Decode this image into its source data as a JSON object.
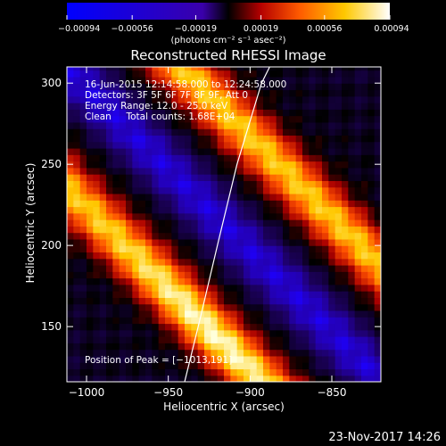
{
  "chart_data": {
    "type": "heatmap",
    "title": "Reconstructed RHESSI Image",
    "xlabel": "Heliocentric X (arcsec)",
    "ylabel": "Heliocentric Y (arcsec)",
    "xlim": [
      -1012,
      -820
    ],
    "ylim": [
      116,
      310
    ],
    "x_ticks": [
      -1000,
      -950,
      -900,
      -850
    ],
    "x_tick_labels": [
      "−1000",
      "−950",
      "−900",
      "−850"
    ],
    "y_ticks": [
      150,
      200,
      250,
      300
    ],
    "y_tick_labels": [
      "150",
      "200",
      "250",
      "300"
    ],
    "colorbar": {
      "range": [
        -0.00094,
        0.00094
      ],
      "ticks": [
        -0.00094,
        -0.00056,
        -0.00019,
        0.00019,
        0.00056,
        0.00094
      ],
      "tick_labels": [
        "−0.00094",
        "−0.00056",
        "−0.00019",
        "0.00019",
        "0.00056",
        "0.00094"
      ],
      "unit": "(photons cm⁻² s⁻¹ asec⁻²)",
      "colormap": [
        "#0000ff",
        "#000000",
        "#b40000",
        "#ff7800",
        "#ffff80",
        "#ffffff"
      ]
    },
    "info_lines": [
      "16-Jun-2015 12:14:58.000 to 12:24:58.000",
      "Detectors: 3F 5F 6F 7F 8F 9F, Att 0",
      "Energy Range: 12.0 - 25.0 keV",
      "Clean     Total counts: 1.68E+04"
    ],
    "peak_label": "Position of Peak = [−1013,191]",
    "peak_position": [
      -1013,
      191
    ],
    "limb_curve": [
      [
        -940,
        116
      ],
      [
        -930,
        157
      ],
      [
        -920,
        200
      ],
      [
        -908,
        250
      ],
      [
        -893,
        300
      ],
      [
        -888,
        310
      ]
    ],
    "bands": [
      {
        "name": "positive lower-left band",
        "sign": "positive",
        "offset_arcsec": -52,
        "peak_value": 0.00094
      },
      {
        "name": "negative central band",
        "sign": "negative",
        "offset_arcsec": 0,
        "peak_value": -0.00056
      },
      {
        "name": "positive upper-right band",
        "sign": "positive",
        "offset_arcsec": 50,
        "peak_value": 0.00075
      }
    ]
  },
  "footer_date": "23-Nov-2017 14:26"
}
